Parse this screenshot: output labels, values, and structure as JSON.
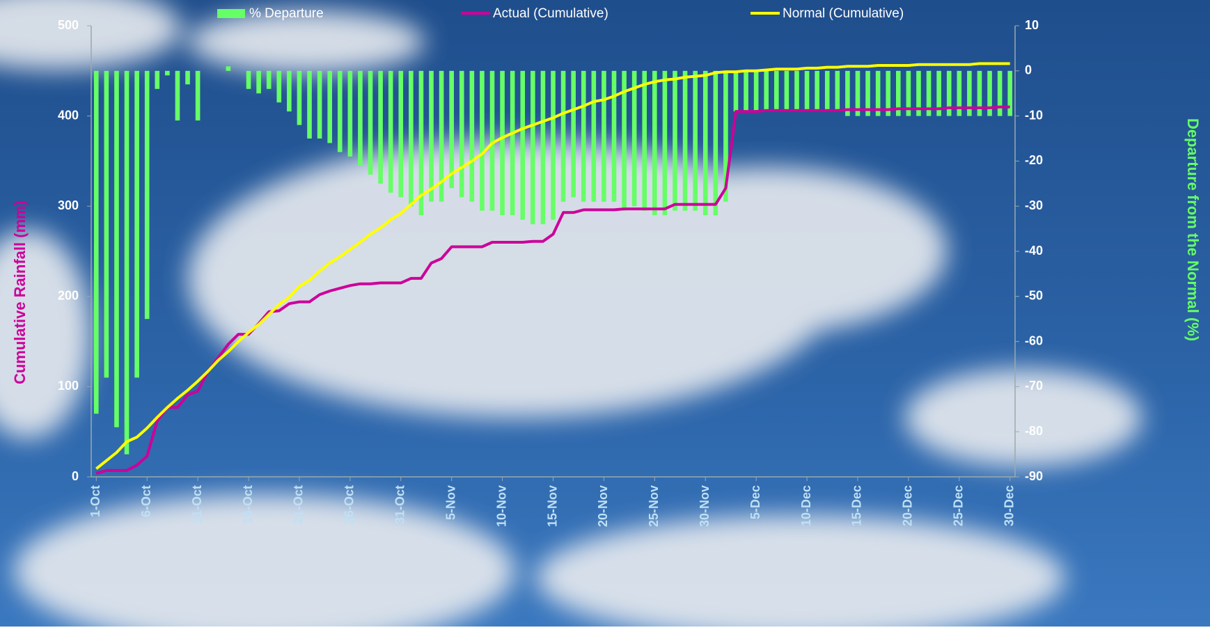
{
  "chart_data": {
    "type": "combo",
    "categories": [
      "1-Oct",
      null,
      null,
      null,
      null,
      "6-Oct",
      null,
      null,
      null,
      null,
      "11-Oct",
      null,
      null,
      null,
      null,
      "16-Oct",
      null,
      null,
      null,
      null,
      "21-Oct",
      null,
      null,
      null,
      null,
      "26-Oct",
      null,
      null,
      null,
      null,
      "31-Oct",
      null,
      null,
      null,
      null,
      "5-Nov",
      null,
      null,
      null,
      null,
      "10-Nov",
      null,
      null,
      null,
      null,
      "15-Nov",
      null,
      null,
      null,
      null,
      "20-Nov",
      null,
      null,
      null,
      null,
      "25-Nov",
      null,
      null,
      null,
      null,
      "30-Nov",
      null,
      null,
      null,
      null,
      "5-Dec",
      null,
      null,
      null,
      null,
      "10-Dec",
      null,
      null,
      null,
      null,
      "15-Dec",
      null,
      null,
      null,
      null,
      "20-Dec",
      null,
      null,
      null,
      null,
      "25-Dec",
      null,
      null,
      null,
      null,
      "30-Dec"
    ],
    "ylabel": "Cumulative Rainfall (mm)",
    "ylim": [
      0,
      500
    ],
    "yticks": [
      0,
      100,
      200,
      300,
      400,
      500
    ],
    "y2label": "Departure from the Normal (%)",
    "y2lim": [
      -90,
      10
    ],
    "y2ticks": [
      -90,
      -80,
      -70,
      -60,
      -50,
      -40,
      -30,
      -20,
      -10,
      0,
      10
    ],
    "series": [
      {
        "name": "% Departure",
        "type": "bar",
        "axis": "y2",
        "color": "#66ff66",
        "values": [
          -76,
          -68,
          -79,
          -85,
          -68,
          -55,
          -4,
          -1,
          -11,
          -3,
          -11,
          0,
          0,
          1,
          0,
          -4,
          -5,
          -4,
          -7,
          -9,
          -12,
          -15,
          -15,
          -16,
          -18,
          -19,
          -21,
          -23,
          -25,
          -27,
          -28,
          -30,
          -32,
          -29,
          -29,
          -26,
          -28,
          -29,
          -31,
          -31,
          -32,
          -32,
          -33,
          -34,
          -34,
          -33,
          -29,
          -28,
          -29,
          -29,
          -29,
          -29,
          -31,
          -30,
          -31,
          -32,
          -32,
          -31,
          -31,
          -31,
          -32,
          -32,
          -29,
          -9,
          -9,
          -9,
          -9,
          -9,
          -9,
          -9,
          -9,
          -9,
          -9,
          -9,
          -10,
          -10,
          -10,
          -10,
          -10,
          -10,
          -10,
          -10,
          -10,
          -10,
          -10,
          -10,
          -10,
          -10,
          -10,
          -10,
          -10
        ]
      },
      {
        "name": "Actual (Cumulative)",
        "type": "line",
        "color": "#cc0099",
        "values": [
          4,
          7,
          7,
          7,
          13,
          23,
          62,
          77,
          77,
          91,
          95,
          117,
          132,
          147,
          158,
          158,
          170,
          183,
          184,
          192,
          194,
          194,
          202,
          206,
          209,
          212,
          214,
          214,
          215,
          215,
          215,
          220,
          220,
          237,
          242,
          255,
          255,
          255,
          255,
          260,
          260,
          260,
          260,
          261,
          261,
          269,
          293,
          293,
          296,
          296,
          296,
          296,
          297,
          297,
          297,
          297,
          297,
          302,
          302,
          302,
          302,
          302,
          320,
          405,
          405,
          405,
          406,
          406,
          406,
          406,
          406,
          406,
          406,
          406,
          407,
          407,
          407,
          407,
          407,
          408,
          408,
          408,
          408,
          408,
          409,
          409,
          409,
          409,
          409,
          410,
          410
        ]
      },
      {
        "name": "Normal (Cumulative)",
        "type": "line",
        "color": "#ffff00",
        "values": [
          9,
          18,
          27,
          39,
          44,
          54,
          66,
          77,
          87,
          96,
          106,
          117,
          129,
          139,
          150,
          160,
          169,
          180,
          191,
          199,
          211,
          218,
          228,
          237,
          244,
          252,
          260,
          269,
          276,
          285,
          292,
          302,
          312,
          319,
          327,
          336,
          343,
          350,
          358,
          370,
          376,
          381,
          386,
          390,
          394,
          398,
          403,
          407,
          411,
          416,
          418,
          422,
          427,
          431,
          435,
          438,
          440,
          441,
          443,
          444,
          445,
          448,
          449,
          449,
          450,
          450,
          451,
          452,
          452,
          452,
          453,
          453,
          454,
          454,
          455,
          455,
          455,
          456,
          456,
          456,
          456,
          457,
          457,
          457,
          457,
          457,
          457,
          458,
          458,
          458,
          458
        ]
      }
    ]
  }
}
